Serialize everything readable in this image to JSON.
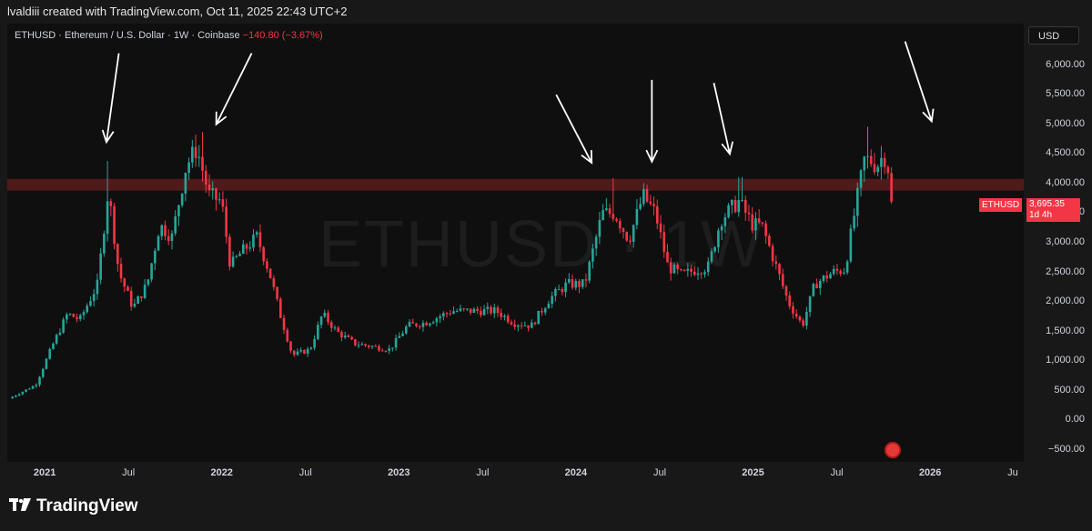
{
  "header": {
    "caption": "lvaldiii created with TradingView.com, Oct 11, 2025 22:43 UTC+2"
  },
  "symbol": {
    "title": "ETHUSD · Ethereum / U.S. Dollar · 1W · Coinbase",
    "change": "−140.80 (−3.67%)",
    "currency_button": "USD",
    "watermark": "ETHUSD · 1W"
  },
  "price_tag": {
    "ticker": "ETHUSD",
    "price": "3,695.35",
    "countdown": "1d 4h"
  },
  "footer": {
    "brand": "TradingView"
  },
  "colors": {
    "up": "#26a69a",
    "down": "#f23645",
    "zone": "#6b2020",
    "arrows": "#ffffff",
    "background": "#0f0f0f"
  },
  "chart_data": {
    "type": "candlestick",
    "timeframe": "1W",
    "y_axis": {
      "ticks": [
        "6,000.00",
        "5,500.00",
        "5,000.00",
        "4,500.00",
        "4,000.00",
        "3,500.00",
        "3,000.00",
        "2,500.00",
        "2,000.00",
        "1,500.00",
        "1,000.00",
        "500.00",
        "0.00",
        "−500.00"
      ],
      "tick_values": [
        6000,
        5500,
        5000,
        4500,
        4000,
        3500,
        3000,
        2500,
        2000,
        1500,
        1000,
        500,
        0,
        -500
      ],
      "range": [
        -700,
        6700
      ]
    },
    "x_axis": {
      "ticks": [
        {
          "label": "2021",
          "year": true,
          "t": 2021.0
        },
        {
          "label": "Jul",
          "year": false,
          "t": 2021.5
        },
        {
          "label": "2022",
          "year": true,
          "t": 2022.0
        },
        {
          "label": "Jul",
          "year": false,
          "t": 2022.5
        },
        {
          "label": "2023",
          "year": true,
          "t": 2023.0
        },
        {
          "label": "Jul",
          "year": false,
          "t": 2023.5
        },
        {
          "label": "2024",
          "year": true,
          "t": 2024.0
        },
        {
          "label": "Jul",
          "year": false,
          "t": 2024.5
        },
        {
          "label": "2025",
          "year": true,
          "t": 2025.0
        },
        {
          "label": "Jul",
          "year": false,
          "t": 2025.5
        },
        {
          "label": "2026",
          "year": true,
          "t": 2026.0
        },
        {
          "label": "Ju",
          "year": false,
          "t": 2026.5
        }
      ],
      "range": [
        2020.79,
        2026.53
      ]
    },
    "resistance_zone": {
      "low": 3880,
      "high": 4080
    },
    "last_price": 3695.35,
    "price_path": [
      [
        2020.8,
        370
      ],
      [
        2020.95,
        600
      ],
      [
        2021.05,
        1300
      ],
      [
        2021.13,
        1800
      ],
      [
        2021.2,
        1700
      ],
      [
        2021.3,
        2300
      ],
      [
        2021.36,
        3900
      ],
      [
        2021.42,
        2500
      ],
      [
        2021.5,
        1900
      ],
      [
        2021.58,
        2300
      ],
      [
        2021.65,
        3300
      ],
      [
        2021.72,
        3100
      ],
      [
        2021.8,
        4300
      ],
      [
        2021.86,
        4600
      ],
      [
        2021.93,
        3800
      ],
      [
        2022.0,
        3700
      ],
      [
        2022.05,
        2600
      ],
      [
        2022.1,
        2800
      ],
      [
        2022.2,
        3100
      ],
      [
        2022.27,
        2500
      ],
      [
        2022.33,
        1800
      ],
      [
        2022.4,
        1100
      ],
      [
        2022.5,
        1200
      ],
      [
        2022.57,
        1800
      ],
      [
        2022.65,
        1500
      ],
      [
        2022.75,
        1300
      ],
      [
        2022.85,
        1250
      ],
      [
        2022.95,
        1200
      ],
      [
        2023.05,
        1600
      ],
      [
        2023.15,
        1650
      ],
      [
        2023.3,
        1850
      ],
      [
        2023.45,
        1850
      ],
      [
        2023.55,
        1850
      ],
      [
        2023.65,
        1650
      ],
      [
        2023.75,
        1600
      ],
      [
        2023.85,
        2050
      ],
      [
        2023.95,
        2300
      ],
      [
        2024.05,
        2300
      ],
      [
        2024.15,
        3500
      ],
      [
        2024.22,
        3500
      ],
      [
        2024.3,
        3050
      ],
      [
        2024.38,
        3800
      ],
      [
        2024.45,
        3500
      ],
      [
        2024.52,
        2600
      ],
      [
        2024.6,
        2450
      ],
      [
        2024.68,
        2550
      ],
      [
        2024.75,
        2600
      ],
      [
        2024.82,
        3400
      ],
      [
        2024.92,
        3700
      ],
      [
        2025.0,
        3300
      ],
      [
        2025.05,
        3300
      ],
      [
        2025.12,
        2700
      ],
      [
        2025.2,
        2000
      ],
      [
        2025.28,
        1600
      ],
      [
        2025.35,
        2300
      ],
      [
        2025.45,
        2500
      ],
      [
        2025.52,
        2550
      ],
      [
        2025.58,
        3600
      ],
      [
        2025.63,
        4400
      ],
      [
        2025.66,
        4400
      ],
      [
        2025.7,
        4300
      ],
      [
        2025.74,
        4500
      ],
      [
        2025.77,
        4200
      ],
      [
        2025.79,
        3695
      ]
    ],
    "peak_wicks": [
      [
        2021.36,
        4380
      ],
      [
        2021.89,
        4870
      ],
      [
        2024.21,
        4090
      ],
      [
        2024.41,
        3980
      ],
      [
        2024.93,
        4110
      ],
      [
        2025.65,
        4960
      ]
    ],
    "arrows": [
      {
        "from": [
          2021.42,
          6200
        ],
        "to": [
          2021.35,
          4700
        ]
      },
      {
        "from": [
          2022.17,
          6200
        ],
        "to": [
          2021.97,
          5000
        ]
      },
      {
        "from": [
          2023.89,
          5500
        ],
        "to": [
          2024.09,
          4350
        ]
      },
      {
        "from": [
          2024.43,
          5750
        ],
        "to": [
          2024.43,
          4370
        ]
      },
      {
        "from": [
          2024.78,
          5700
        ],
        "to": [
          2024.87,
          4500
        ]
      },
      {
        "from": [
          2025.86,
          6400
        ],
        "to": [
          2026.01,
          5050
        ]
      }
    ]
  }
}
